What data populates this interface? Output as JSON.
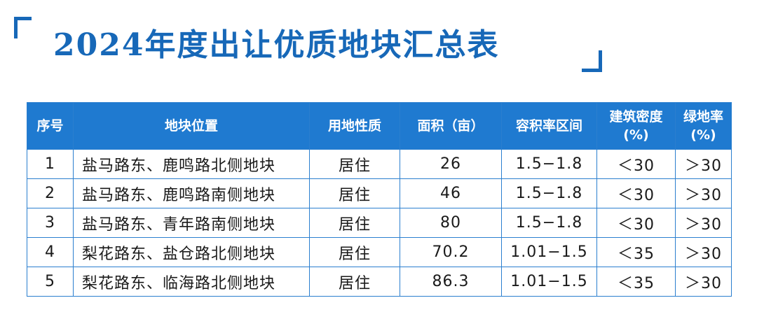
{
  "header": {
    "title": "2024年度出让优质地块汇总表"
  },
  "table": {
    "columns": [
      "序号",
      "地块位置",
      "用地性质",
      "面积（亩）",
      "容积率区间",
      [
        "建筑密度",
        "(%)"
      ],
      [
        "绿地率",
        "(%)"
      ]
    ],
    "rows": [
      [
        1,
        "盐马路东、鹿鸣路北侧地块",
        "居住",
        26,
        "1.5−1.8",
        "＜30",
        "＞30"
      ],
      [
        2,
        "盐马路东、鹿鸣路南侧地块",
        "居住",
        46,
        "1.5−1.8",
        "＜30",
        "＞30"
      ],
      [
        3,
        "盐马路东、青年路南侧地块",
        "居住",
        80,
        "1.5−1.8",
        "＜30",
        "＞30"
      ],
      [
        4,
        "梨花路东、盐仓路北侧地块",
        "居住",
        70.2,
        "1.01−1.5",
        "＜35",
        "＞30"
      ],
      [
        5,
        "梨花路东、临海路北侧地块",
        "居住",
        86.3,
        "1.01−1.5",
        "＜35",
        "＞30"
      ]
    ]
  }
}
